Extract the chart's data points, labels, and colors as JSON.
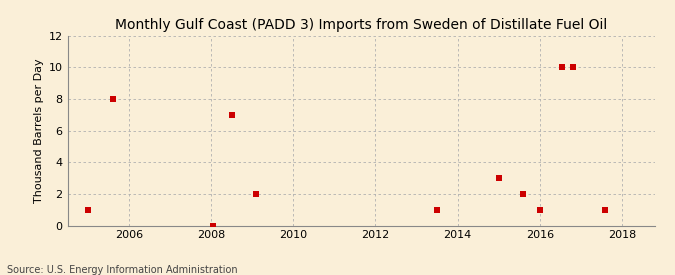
{
  "title": "Monthly Gulf Coast (PADD 3) Imports from Sweden of Distillate Fuel Oil",
  "ylabel": "Thousand Barrels per Day",
  "source": "Source: U.S. Energy Information Administration",
  "background_color": "#faefd8",
  "scatter_color": "#cc0000",
  "grid_color": "#b0b0b0",
  "xlim": [
    2004.5,
    2018.8
  ],
  "ylim": [
    0,
    12
  ],
  "yticks": [
    0,
    2,
    4,
    6,
    8,
    10,
    12
  ],
  "xticks": [
    2006,
    2008,
    2010,
    2012,
    2014,
    2016,
    2018
  ],
  "data_x": [
    2005.0,
    2005.6,
    2008.05,
    2008.5,
    2009.1,
    2013.5,
    2015.0,
    2015.6,
    2016.0,
    2016.55,
    2016.8,
    2017.6
  ],
  "data_y": [
    1,
    8,
    0,
    7,
    2,
    1,
    3,
    2,
    1,
    10,
    10,
    1
  ],
  "marker": "s",
  "marker_size": 4.5,
  "title_fontsize": 10,
  "ylabel_fontsize": 8,
  "tick_fontsize": 8,
  "source_fontsize": 7
}
